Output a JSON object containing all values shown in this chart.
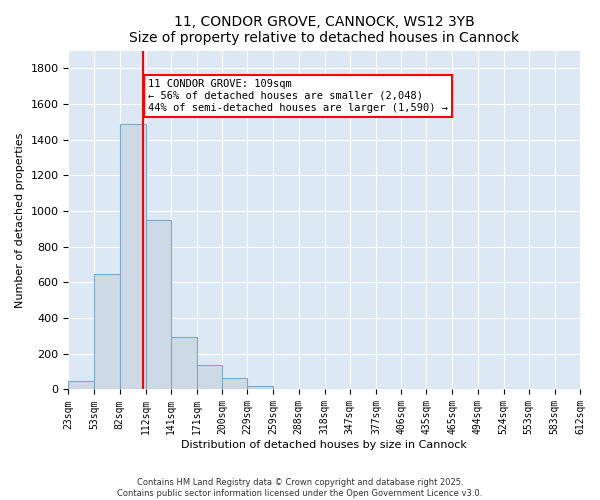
{
  "title": "11, CONDOR GROVE, CANNOCK, WS12 3YB",
  "subtitle": "Size of property relative to detached houses in Cannock",
  "xlabel": "Distribution of detached houses by size in Cannock",
  "ylabel": "Number of detached properties",
  "bar_color": "#cdd9e5",
  "bar_edge_color": "#7aaac8",
  "background_color": "#dce9f5",
  "grid_color": "#b8cfe0",
  "bin_edges": [
    23,
    53,
    82,
    112,
    141,
    171,
    200,
    229,
    259,
    288,
    318,
    347,
    377,
    406,
    435,
    465,
    494,
    524,
    553,
    583,
    612
  ],
  "bin_labels": [
    "23sqm",
    "53sqm",
    "82sqm",
    "112sqm",
    "141sqm",
    "171sqm",
    "200sqm",
    "229sqm",
    "259sqm",
    "288sqm",
    "318sqm",
    "347sqm",
    "377sqm",
    "406sqm",
    "435sqm",
    "465sqm",
    "494sqm",
    "524sqm",
    "553sqm",
    "583sqm",
    "612sqm"
  ],
  "counts": [
    50,
    650,
    1490,
    950,
    295,
    135,
    65,
    20,
    5,
    0,
    0,
    0,
    0,
    0,
    0,
    0,
    0,
    0,
    0,
    0
  ],
  "ylim": [
    0,
    1900
  ],
  "yticks": [
    0,
    200,
    400,
    600,
    800,
    1000,
    1200,
    1400,
    1600,
    1800
  ],
  "property_line_x": 109,
  "annotation_line1": "11 CONDOR GROVE: 109sqm",
  "annotation_line2": "← 56% of detached houses are smaller (2,048)",
  "annotation_line3": "44% of semi-detached houses are larger (1,590) →",
  "footer_line1": "Contains HM Land Registry data © Crown copyright and database right 2025.",
  "footer_line2": "Contains public sector information licensed under the Open Government Licence v3.0."
}
